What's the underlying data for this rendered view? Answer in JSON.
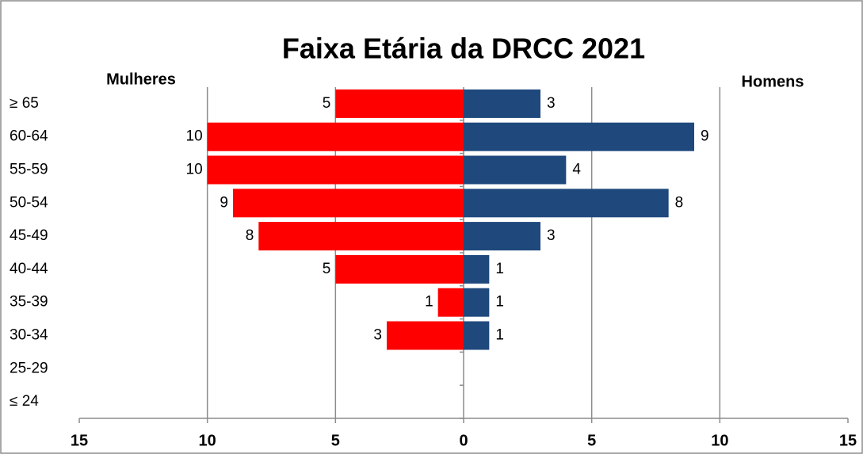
{
  "chart_data": {
    "type": "bar",
    "orientation": "horizontal",
    "title": "Faixa Etária da DRCC 2021",
    "categories": [
      "≥ 65",
      "60-64",
      "55-59",
      "50-54",
      "45-49",
      "40-44",
      "35-39",
      "30-34",
      "25-29",
      "≤ 24"
    ],
    "series": [
      {
        "name": "Mulheres",
        "color": "#ff0000",
        "values": [
          -5,
          -10,
          -10,
          -9,
          -8,
          -5,
          -1,
          -3,
          null,
          null
        ],
        "value_labels": [
          "5",
          "10",
          "10",
          "9",
          "8",
          "5",
          "1",
          "3",
          null,
          null
        ]
      },
      {
        "name": "Homens",
        "color": "#1f497d",
        "values": [
          3,
          9,
          4,
          8,
          3,
          1,
          1,
          1,
          null,
          null
        ]
      }
    ],
    "xlim": [
      -15,
      15
    ],
    "xticks": [
      {
        "value": -15,
        "label": "15"
      },
      {
        "value": -10,
        "label": "10"
      },
      {
        "value": -5,
        "label": "5"
      },
      0,
      5,
      10,
      15
    ],
    "grid": true
  }
}
